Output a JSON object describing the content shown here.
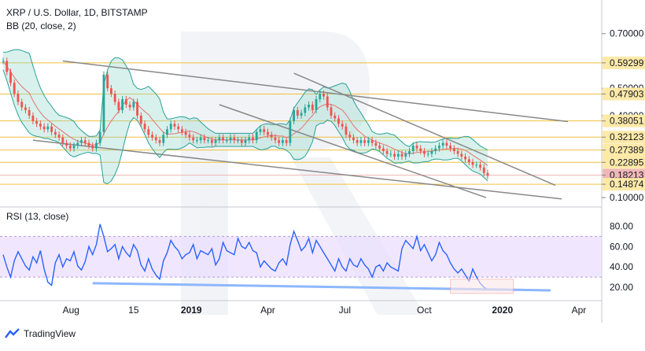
{
  "chart_data": {
    "type": "line",
    "title": "XRP / U.S. Dollar, 1D, BITSTAMP",
    "indicator_bb": "BB (20, close, 2)",
    "indicator_rsi": "RSI (13, close)",
    "x_labels": [
      "Aug",
      "15",
      "2019",
      "Apr",
      "Jul",
      "Oct",
      "2020",
      "Apr"
    ],
    "price_axis": {
      "ticks": [
        "0.70000",
        "0.59299",
        "0.50000",
        "0.47903",
        "0.40000",
        "0.38051",
        "0.32123",
        "0.27389",
        "0.22895",
        "0.18213",
        "0.14874",
        "0.10000"
      ],
      "range": [
        0.08,
        0.8
      ]
    },
    "levels": [
      "0.59299",
      "0.47903",
      "0.38051",
      "0.32123",
      "0.27389",
      "0.22895",
      "0.14874"
    ],
    "current_price": "0.18213",
    "rsi_axis": {
      "ticks": [
        "80.00",
        "60.00",
        "40.00",
        "20.00"
      ],
      "range": [
        10,
        95
      ],
      "band": [
        30,
        70
      ]
    },
    "price_series": [
      0.6,
      0.56,
      0.52,
      0.48,
      0.45,
      0.43,
      0.42,
      0.4,
      0.38,
      0.37,
      0.36,
      0.35,
      0.36,
      0.34,
      0.33,
      0.32,
      0.3,
      0.29,
      0.28,
      0.29,
      0.3,
      0.31,
      0.3,
      0.29,
      0.28,
      0.3,
      0.34,
      0.55,
      0.5,
      0.48,
      0.45,
      0.42,
      0.46,
      0.44,
      0.43,
      0.45,
      0.4,
      0.37,
      0.35,
      0.33,
      0.32,
      0.31,
      0.3,
      0.33,
      0.35,
      0.37,
      0.36,
      0.35,
      0.34,
      0.33,
      0.32,
      0.31,
      0.31,
      0.32,
      0.31,
      0.31,
      0.3,
      0.31,
      0.32,
      0.31,
      0.31,
      0.32,
      0.31,
      0.31,
      0.3,
      0.31,
      0.32,
      0.31,
      0.34,
      0.35,
      0.34,
      0.33,
      0.32,
      0.31,
      0.3,
      0.31,
      0.3,
      0.38,
      0.42,
      0.4,
      0.41,
      0.43,
      0.44,
      0.42,
      0.46,
      0.48,
      0.47,
      0.43,
      0.4,
      0.39,
      0.37,
      0.36,
      0.33,
      0.32,
      0.31,
      0.3,
      0.31,
      0.3,
      0.31,
      0.3,
      0.29,
      0.28,
      0.27,
      0.26,
      0.26,
      0.25,
      0.26,
      0.25,
      0.26,
      0.27,
      0.29,
      0.28,
      0.27,
      0.26,
      0.26,
      0.27,
      0.28,
      0.29,
      0.3,
      0.29,
      0.28,
      0.27,
      0.26,
      0.25,
      0.24,
      0.23,
      0.22,
      0.22,
      0.21,
      0.19,
      0.18
    ],
    "rsi_series": [
      52,
      40,
      30,
      46,
      55,
      48,
      41,
      37,
      50,
      44,
      56,
      38,
      25,
      22,
      44,
      52,
      40,
      48,
      46,
      55,
      41,
      37,
      45,
      60,
      52,
      62,
      82,
      70,
      55,
      58,
      62,
      48,
      60,
      54,
      50,
      62,
      56,
      42,
      36,
      48,
      38,
      32,
      28,
      46,
      54,
      66,
      60,
      56,
      48,
      52,
      54,
      62,
      48,
      56,
      54,
      52,
      58,
      42,
      48,
      64,
      56,
      54,
      52,
      68,
      60,
      58,
      64,
      56,
      54,
      40,
      46,
      42,
      38,
      36,
      44,
      48,
      42,
      62,
      75,
      66,
      56,
      60,
      68,
      54,
      66,
      60,
      54,
      48,
      42,
      36,
      48,
      40,
      36,
      48,
      42,
      40,
      48,
      42,
      38,
      30,
      40,
      42,
      36,
      44,
      40,
      38,
      36,
      58,
      66,
      62,
      58,
      70,
      56,
      62,
      54,
      46,
      52,
      64,
      56,
      52,
      44,
      38,
      34,
      38,
      32,
      26,
      38,
      30,
      24,
      20,
      18
    ],
    "rsi_markers": [
      "80.00",
      "60.00",
      "40.00",
      "20.00"
    ],
    "branding": {
      "footer": "TradingView"
    },
    "colors": {
      "accent": "#2962ff",
      "bb_fill": "#8ed6c8",
      "level": "#f0c040",
      "price_label": "#f0b7b7",
      "rsi_band": "#e9ddff",
      "trend": "#888888",
      "rsi_trend": "#8db7ff"
    }
  }
}
